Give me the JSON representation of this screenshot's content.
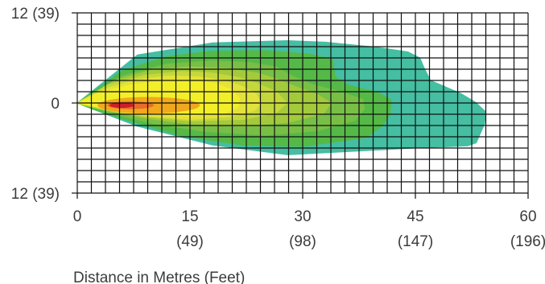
{
  "chart_data": {
    "type": "heatmap",
    "title": "",
    "xlabel": "Distance in Metres (Feet)",
    "ylabel": "",
    "xlim": [
      0,
      60
    ],
    "ylim": [
      -12,
      12
    ],
    "grid": true,
    "x_ticks": [
      {
        "value": 0,
        "label": "0",
        "sublabel": ""
      },
      {
        "value": 15,
        "label": "15",
        "sublabel": "(49)"
      },
      {
        "value": 30,
        "label": "30",
        "sublabel": "(98)"
      },
      {
        "value": 45,
        "label": "45",
        "sublabel": "(147)"
      },
      {
        "value": 60,
        "label": "60",
        "sublabel": "(196)"
      }
    ],
    "y_ticks": [
      {
        "value": 12,
        "label": "12 (39)"
      },
      {
        "value": 0,
        "label": "0"
      },
      {
        "value": -12,
        "label": "12 (39)"
      }
    ],
    "colors": {
      "grid": "#111111",
      "text": "#3c3c3c"
    },
    "zones": [
      {
        "color": "#45bea2",
        "points": [
          [
            0,
            0
          ],
          [
            8,
            6.4
          ],
          [
            18,
            8
          ],
          [
            28,
            8.3
          ],
          [
            33,
            8.1
          ],
          [
            40,
            7.4
          ],
          [
            44,
            6.8
          ],
          [
            45.6,
            6
          ],
          [
            46.2,
            4.6
          ],
          [
            47,
            3
          ],
          [
            51,
            1.3
          ],
          [
            53,
            0.1
          ],
          [
            54.4,
            -1.2
          ],
          [
            54.2,
            -2.8
          ],
          [
            53.1,
            -5.3
          ],
          [
            52,
            -5.7
          ],
          [
            45,
            -6
          ],
          [
            28,
            -6.9
          ],
          [
            18,
            -5.6
          ],
          [
            8,
            -3.1
          ],
          [
            2,
            -0.8
          ]
        ]
      },
      {
        "color": "#55b947",
        "points": [
          [
            0,
            0
          ],
          [
            6,
            4.3
          ],
          [
            12,
            6.2
          ],
          [
            18,
            6.9
          ],
          [
            25,
            7
          ],
          [
            31,
            6.5
          ],
          [
            34,
            5.8
          ],
          [
            34.3,
            3.5
          ],
          [
            36,
            2.4
          ],
          [
            40,
            1.4
          ],
          [
            41.8,
            0.4
          ],
          [
            41.6,
            -1.6
          ],
          [
            40.6,
            -3
          ],
          [
            38.5,
            -4.6
          ],
          [
            30,
            -5.8
          ],
          [
            22,
            -5.6
          ],
          [
            14,
            -4.4
          ],
          [
            7,
            -2.4
          ],
          [
            2,
            -0.8
          ]
        ]
      },
      {
        "color": "#78bf46",
        "points": [
          [
            0,
            0
          ],
          [
            6,
            3.6
          ],
          [
            12,
            5.2
          ],
          [
            18,
            5.6
          ],
          [
            23,
            5.4
          ],
          [
            26.5,
            4.8
          ],
          [
            28.6,
            3.6
          ],
          [
            31.5,
            2.4
          ],
          [
            35,
            1.5
          ],
          [
            38,
            0.5
          ],
          [
            38.2,
            -0.8
          ],
          [
            37,
            -2.3
          ],
          [
            32,
            -3.7
          ],
          [
            25,
            -4.3
          ],
          [
            17,
            -3.8
          ],
          [
            10,
            -2.7
          ],
          [
            5,
            -1.5
          ],
          [
            1,
            -0.3
          ]
        ]
      },
      {
        "color": "#a3ca3b",
        "points": [
          [
            0,
            0
          ],
          [
            5,
            3
          ],
          [
            10,
            4.4
          ],
          [
            15,
            4.8
          ],
          [
            20,
            4.6
          ],
          [
            24,
            4
          ],
          [
            26.5,
            3.2
          ],
          [
            29,
            2.2
          ],
          [
            32,
            1.1
          ],
          [
            33.8,
            0
          ],
          [
            32.8,
            -1.4
          ],
          [
            28,
            -2.6
          ],
          [
            22,
            -3.1
          ],
          [
            15,
            -2.8
          ],
          [
            9,
            -2
          ],
          [
            4,
            -1
          ],
          [
            1,
            -0.3
          ]
        ]
      },
      {
        "color": "#c4d83b",
        "points": [
          [
            0,
            0
          ],
          [
            4,
            2.4
          ],
          [
            9,
            3.7
          ],
          [
            14,
            4.2
          ],
          [
            18,
            4
          ],
          [
            21.5,
            3.4
          ],
          [
            24,
            2.6
          ],
          [
            26.5,
            1.5
          ],
          [
            27.9,
            0
          ],
          [
            26.5,
            -1.3
          ],
          [
            22,
            -2.2
          ],
          [
            15,
            -2.4
          ],
          [
            9,
            -1.8
          ],
          [
            4,
            -1
          ],
          [
            1,
            -0.3
          ]
        ]
      },
      {
        "color": "#e3e23a",
        "points": [
          [
            0,
            0
          ],
          [
            4,
            2
          ],
          [
            8,
            3.1
          ],
          [
            12,
            3.6
          ],
          [
            16,
            3.5
          ],
          [
            19.5,
            3
          ],
          [
            22,
            2.2
          ],
          [
            23.8,
            1.2
          ],
          [
            24.5,
            0
          ],
          [
            23.6,
            -1
          ],
          [
            20.5,
            -1.8
          ],
          [
            15,
            -2.2
          ],
          [
            9,
            -1.7
          ],
          [
            4,
            -0.9
          ],
          [
            1,
            -0.2
          ]
        ]
      },
      {
        "color": "#f2ef28",
        "points": [
          [
            0,
            0
          ],
          [
            3,
            1.4
          ],
          [
            7,
            2.4
          ],
          [
            11,
            2.9
          ],
          [
            15,
            3
          ],
          [
            18.5,
            2.6
          ],
          [
            20.5,
            1.8
          ],
          [
            21.6,
            0.6
          ],
          [
            21.4,
            -0.6
          ],
          [
            19.5,
            -1.4
          ],
          [
            15,
            -1.8
          ],
          [
            10,
            -1.5
          ],
          [
            5,
            -0.9
          ],
          [
            1,
            -0.2
          ]
        ]
      },
      {
        "color": "#f0a81c",
        "ellipse": {
          "cx": 9.5,
          "cy": -0.3,
          "rx": 6.8,
          "ry": 1.1
        }
      },
      {
        "color": "#ea6a2b",
        "ellipse": {
          "cx": 7.1,
          "cy": -0.3,
          "rx": 3.1,
          "ry": 0.52
        }
      },
      {
        "color": "#cc1f2b",
        "ellipse": {
          "cx": 5.9,
          "cy": -0.3,
          "rx": 1.6,
          "ry": 0.36
        }
      }
    ]
  }
}
